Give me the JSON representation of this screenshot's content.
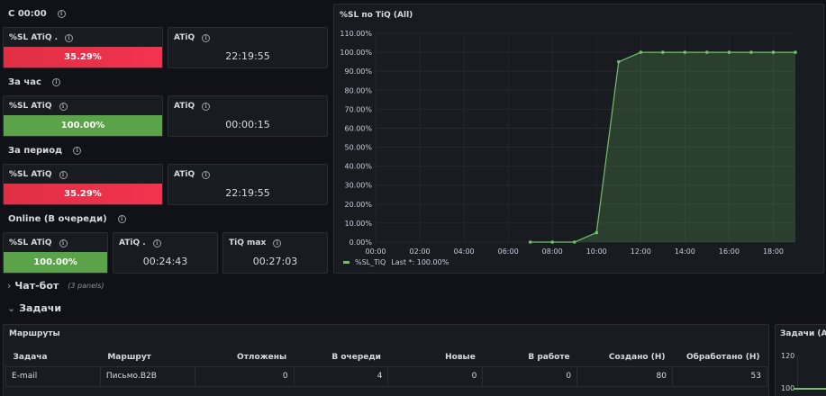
{
  "sections": {
    "s1": "С 00:00",
    "s2": "За час",
    "s3": "За период",
    "s4": "Online (В очереди)"
  },
  "stats": {
    "s1_sl_title": "%SL ATiQ .",
    "s1_sl_value": "35.29%",
    "s1_atiq_title": "ATiQ",
    "s1_atiq_value": "22:19:55",
    "s2_sl_title": "%SL ATiQ",
    "s2_sl_value": "100.00%",
    "s2_atiq_title": "ATiQ",
    "s2_atiq_value": "00:00:15",
    "s3_sl_title": "%SL ATiQ",
    "s3_sl_value": "35.29%",
    "s3_atiq_title": "ATiQ",
    "s3_atiq_value": "22:19:55",
    "s4_sl_title": "%SL ATiQ",
    "s4_sl_value": "100.00%",
    "s4_atiq_title": "ATiQ .",
    "s4_atiq_value": "00:24:43",
    "s4_tiq_title": "TiQ max",
    "s4_tiq_value": "00:27:03"
  },
  "colors": {
    "red": "#e02f44",
    "green": "#5ba348",
    "line": "#73bf69"
  },
  "chart_panel": {
    "title": "%SL по TiQ (All)",
    "legend_name": "%SL_TiQ",
    "legend_stat": "Last *: 100.00%"
  },
  "chart_data": {
    "type": "area",
    "title": "%SL по TiQ (All)",
    "yticks": [
      "110.00%",
      "100.00%",
      "90.00%",
      "80.00%",
      "70.00%",
      "60.00%",
      "50.00%",
      "40.00%",
      "30.00%",
      "20.00%",
      "10.00%",
      "0.00%"
    ],
    "xticks": [
      "00:00",
      "02:00",
      "04:00",
      "06:00",
      "08:00",
      "10:00",
      "12:00",
      "14:00",
      "16:00",
      "18:00"
    ],
    "ylim": [
      0,
      110
    ],
    "xlim": [
      0,
      19
    ],
    "series": [
      {
        "name": "%SL_TiQ",
        "x": [
          7,
          8,
          9,
          10,
          11,
          12,
          13,
          14,
          15,
          16,
          17,
          18,
          19
        ],
        "values": [
          0,
          0,
          0,
          5,
          95,
          100,
          100,
          100,
          100,
          100,
          100,
          100,
          100
        ]
      }
    ]
  },
  "rows": {
    "chatbot": "Чат-бот",
    "chatbot_note": "(3 panels)",
    "tasks": "Задачи"
  },
  "routes": {
    "title": "Маршруты",
    "headers": [
      "Задача",
      "Маршрут",
      "Отложены",
      "В очереди",
      "Новые",
      "В работе",
      "Создано (Н)",
      "Обработано (Н)"
    ],
    "rows": [
      [
        "E-mail",
        "Письмо.B2B",
        "0",
        "4",
        "0",
        "0",
        "80",
        "53"
      ]
    ]
  },
  "tasks_panel": {
    "title": "Задачи (All)",
    "ytick_a": "120",
    "ytick_b": "100"
  }
}
